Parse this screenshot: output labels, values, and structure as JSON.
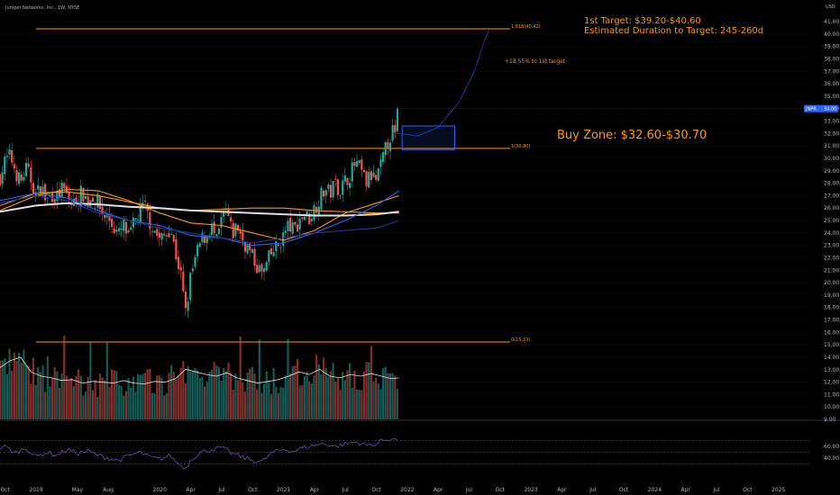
{
  "header": {
    "title": "Juniper Networks, Inc., 1W, NYSE",
    "currency": "USD"
  },
  "annotations": {
    "target_line1": "1st Target: $39.20-$40.60",
    "target_line2": "Estimated Duration to Target: 245-260d",
    "pct_to_target": "+18.55% to 1st target",
    "buy_zone": "Buy Zone: $32.60-$30.70"
  },
  "levels": [
    {
      "label": "1.618(40.42)",
      "price": 40.42
    },
    {
      "label": "1(30.80)",
      "price": 30.8
    },
    {
      "label": "0(15.23)",
      "price": 15.23
    }
  ],
  "price_tag": {
    "symbol": "JNPR",
    "value": "34.00",
    "price": 34.0
  },
  "colors": {
    "background": "#000000",
    "up": "#26a69a",
    "down": "#ef5350",
    "fib": "#ff9800",
    "ma_white": "#e0e0e0",
    "ma_blue": "#2962ff",
    "ma_navy": "#283593",
    "rsi": "#7e57c2",
    "buy_box": "#2962ff"
  },
  "chart_data": {
    "type": "candlestick",
    "title": "Juniper Networks, Inc., 1W, NYSE",
    "y_axis": {
      "range": [
        8.5,
        42.0
      ],
      "ticks": [
        9,
        10,
        11,
        12,
        13,
        14,
        15,
        16,
        17,
        18,
        19,
        20,
        21,
        22,
        23,
        24,
        25,
        26,
        27,
        28,
        29,
        30,
        31,
        32,
        33,
        34,
        35,
        36,
        37,
        38,
        39,
        40,
        41
      ],
      "tick_labels": [
        "9.00",
        "10.00",
        "11.00",
        "12.00",
        "13.00",
        "14.00",
        "15.00",
        "16.00",
        "17.00",
        "18.00",
        "19.00",
        "20.00",
        "21.00",
        "22.00",
        "23.00",
        "24.00",
        "25.00",
        "26.00",
        "27.00",
        "28.00",
        "29.00",
        "30.00",
        "31.00",
        "32.00",
        "33.00",
        "34.00",
        "35.00",
        "36.00",
        "37.00",
        "38.00",
        "39.00",
        "40.00",
        "41.00"
      ]
    },
    "x_axis": {
      "range_months": [
        -3.5,
        75.0
      ],
      "ticks": [
        {
          "label": "Oct",
          "m": -3
        },
        {
          "label": "2019",
          "m": 0
        },
        {
          "label": "May",
          "m": 4
        },
        {
          "label": "Aug",
          "m": 7
        },
        {
          "label": "2020",
          "m": 12
        },
        {
          "label": "Apr",
          "m": 15
        },
        {
          "label": "Jul",
          "m": 18
        },
        {
          "label": "Oct",
          "m": 21
        },
        {
          "label": "2021",
          "m": 24
        },
        {
          "label": "Apr",
          "m": 27
        },
        {
          "label": "Jul",
          "m": 30
        },
        {
          "label": "Oct",
          "m": 33
        },
        {
          "label": "2022",
          "m": 36
        },
        {
          "label": "Apr",
          "m": 39
        },
        {
          "label": "Jul",
          "m": 42
        },
        {
          "label": "Oct",
          "m": 45
        },
        {
          "label": "2023",
          "m": 48
        },
        {
          "label": "Apr",
          "m": 51
        },
        {
          "label": "Jul",
          "m": 54
        },
        {
          "label": "Oct",
          "m": 57
        },
        {
          "label": "2024",
          "m": 60
        },
        {
          "label": "Apr",
          "m": 63
        },
        {
          "label": "Jul",
          "m": 66
        },
        {
          "label": "Oct",
          "m": 69
        },
        {
          "label": "2025",
          "m": 72
        }
      ]
    },
    "close_path": [
      [
        -3.5,
        28.5
      ],
      [
        -3.0,
        29.8
      ],
      [
        -2.5,
        30.2
      ],
      [
        -2.0,
        29.0
      ],
      [
        -1.5,
        28.0
      ],
      [
        -1.0,
        29.2
      ],
      [
        -0.5,
        28.3
      ],
      [
        0.0,
        27.0
      ],
      [
        0.5,
        27.8
      ],
      [
        1.0,
        26.5
      ],
      [
        1.5,
        27.2
      ],
      [
        2.0,
        26.8
      ],
      [
        2.5,
        27.5
      ],
      [
        3.0,
        27.0
      ],
      [
        3.5,
        26.2
      ],
      [
        4.0,
        26.8
      ],
      [
        4.5,
        27.3
      ],
      [
        5.0,
        26.5
      ],
      [
        5.5,
        27.0
      ],
      [
        6.0,
        26.4
      ],
      [
        6.5,
        25.5
      ],
      [
        7.0,
        25.2
      ],
      [
        7.5,
        24.5
      ],
      [
        8.0,
        23.8
      ],
      [
        8.5,
        24.6
      ],
      [
        9.0,
        23.5
      ],
      [
        9.5,
        24.8
      ],
      [
        10.0,
        25.6
      ],
      [
        10.5,
        26.2
      ],
      [
        11.0,
        25.0
      ],
      [
        11.5,
        24.2
      ],
      [
        12.0,
        23.4
      ],
      [
        12.5,
        23.8
      ],
      [
        13.0,
        24.5
      ],
      [
        13.5,
        22.5
      ],
      [
        14.0,
        20.8
      ],
      [
        14.5,
        17.5
      ],
      [
        15.0,
        20.5
      ],
      [
        15.5,
        22.0
      ],
      [
        16.0,
        23.4
      ],
      [
        16.5,
        23.8
      ],
      [
        17.0,
        24.5
      ],
      [
        17.5,
        23.2
      ],
      [
        18.0,
        25.0
      ],
      [
        18.5,
        25.8
      ],
      [
        19.0,
        23.8
      ],
      [
        19.5,
        24.6
      ],
      [
        20.0,
        23.5
      ],
      [
        20.5,
        22.8
      ],
      [
        21.0,
        22.0
      ],
      [
        21.5,
        21.2
      ],
      [
        22.0,
        20.6
      ],
      [
        22.5,
        21.8
      ],
      [
        23.0,
        22.5
      ],
      [
        23.5,
        23.0
      ],
      [
        24.0,
        23.8
      ],
      [
        24.5,
        24.6
      ],
      [
        25.0,
        24.2
      ],
      [
        25.5,
        25.0
      ],
      [
        26.0,
        25.5
      ],
      [
        26.5,
        25.2
      ],
      [
        27.0,
        26.0
      ],
      [
        27.5,
        26.8
      ],
      [
        28.0,
        27.5
      ],
      [
        28.5,
        27.2
      ],
      [
        29.0,
        28.0
      ],
      [
        29.5,
        27.5
      ],
      [
        30.0,
        28.2
      ],
      [
        30.5,
        28.8
      ],
      [
        31.0,
        29.6
      ],
      [
        31.5,
        29.0
      ],
      [
        32.0,
        28.0
      ],
      [
        32.5,
        28.6
      ],
      [
        33.0,
        28.2
      ],
      [
        33.5,
        29.5
      ],
      [
        34.0,
        31.0
      ],
      [
        34.5,
        32.2
      ],
      [
        35.0,
        31.5
      ],
      [
        35.2,
        34.0
      ]
    ],
    "volume_path": [
      [
        -3.5,
        0.6
      ],
      [
        -2.5,
        0.68
      ],
      [
        -1.5,
        0.72
      ],
      [
        -0.5,
        0.55
      ],
      [
        0.5,
        0.5
      ],
      [
        1.5,
        0.48
      ],
      [
        2.5,
        0.45
      ],
      [
        3.5,
        0.46
      ],
      [
        4.5,
        0.42
      ],
      [
        5.5,
        0.44
      ],
      [
        6.5,
        0.43
      ],
      [
        7.5,
        0.42
      ],
      [
        8.5,
        0.45
      ],
      [
        9.5,
        0.42
      ],
      [
        10.5,
        0.41
      ],
      [
        11.5,
        0.44
      ],
      [
        12.5,
        0.43
      ],
      [
        13.5,
        0.47
      ],
      [
        14.5,
        0.58
      ],
      [
        15.5,
        0.55
      ],
      [
        16.5,
        0.52
      ],
      [
        17.5,
        0.5
      ],
      [
        18.5,
        0.54
      ],
      [
        19.5,
        0.48
      ],
      [
        20.5,
        0.45
      ],
      [
        21.5,
        0.42
      ],
      [
        22.5,
        0.44
      ],
      [
        23.5,
        0.46
      ],
      [
        24.5,
        0.5
      ],
      [
        25.5,
        0.55
      ],
      [
        26.5,
        0.52
      ],
      [
        27.5,
        0.58
      ],
      [
        28.5,
        0.5
      ],
      [
        29.5,
        0.48
      ],
      [
        30.5,
        0.52
      ],
      [
        31.5,
        0.5
      ],
      [
        32.5,
        0.53
      ],
      [
        33.5,
        0.5
      ],
      [
        34.5,
        0.47
      ],
      [
        35.2,
        0.48
      ]
    ],
    "rsi_path": [
      [
        -3.5,
        58
      ],
      [
        -3.0,
        60
      ],
      [
        -2.0,
        48
      ],
      [
        -1.0,
        58
      ],
      [
        0.0,
        42
      ],
      [
        1.0,
        50
      ],
      [
        2.0,
        45
      ],
      [
        3.0,
        55
      ],
      [
        4.0,
        48
      ],
      [
        5.0,
        52
      ],
      [
        6.0,
        45
      ],
      [
        7.0,
        40
      ],
      [
        8.0,
        36
      ],
      [
        9.0,
        44
      ],
      [
        10.0,
        50
      ],
      [
        11.0,
        42
      ],
      [
        12.0,
        38
      ],
      [
        13.0,
        45
      ],
      [
        13.5,
        35
      ],
      [
        14.0,
        28
      ],
      [
        14.5,
        22
      ],
      [
        15.0,
        38
      ],
      [
        16.0,
        50
      ],
      [
        17.0,
        55
      ],
      [
        18.0,
        58
      ],
      [
        19.0,
        48
      ],
      [
        20.0,
        42
      ],
      [
        21.0,
        36
      ],
      [
        22.0,
        34
      ],
      [
        22.5,
        44
      ],
      [
        23.0,
        50
      ],
      [
        24.0,
        55
      ],
      [
        25.0,
        52
      ],
      [
        26.0,
        58
      ],
      [
        27.0,
        62
      ],
      [
        28.0,
        65
      ],
      [
        29.0,
        60
      ],
      [
        30.0,
        64
      ],
      [
        31.0,
        68
      ],
      [
        32.0,
        62
      ],
      [
        33.0,
        64
      ],
      [
        33.5,
        70
      ],
      [
        34.0,
        72
      ],
      [
        34.5,
        74
      ],
      [
        35.0,
        70
      ],
      [
        35.2,
        76
      ]
    ],
    "moving_averages": [
      {
        "color": "#ff9800",
        "points": [
          [
            -3.5,
            26.2
          ],
          [
            0,
            27.2
          ],
          [
            3,
            27.3
          ],
          [
            6,
            27.0
          ],
          [
            9,
            26.5
          ],
          [
            12,
            26.0
          ],
          [
            15,
            25.8
          ],
          [
            18,
            25.9
          ],
          [
            21,
            26.0
          ],
          [
            24,
            26.0
          ],
          [
            27,
            25.8
          ],
          [
            30,
            25.7
          ],
          [
            33,
            25.6
          ],
          [
            35.2,
            25.6
          ]
        ]
      },
      {
        "color": "#ff9800",
        "points": [
          [
            -3.5,
            25.8
          ],
          [
            0,
            27.0
          ],
          [
            3,
            27.5
          ],
          [
            6,
            27.4
          ],
          [
            9,
            26.6
          ],
          [
            12,
            25.6
          ],
          [
            15,
            24.8
          ],
          [
            18,
            24.6
          ],
          [
            21,
            24.0
          ],
          [
            24,
            23.4
          ],
          [
            27,
            24.2
          ],
          [
            30,
            25.6
          ],
          [
            33,
            26.4
          ],
          [
            35.2,
            27.0
          ]
        ]
      },
      {
        "color": "#e0e0e0",
        "points": [
          [
            -3.5,
            25.7
          ],
          [
            0,
            26.2
          ],
          [
            3,
            26.4
          ],
          [
            6,
            26.3
          ],
          [
            9,
            26.1
          ],
          [
            12,
            26.0
          ],
          [
            15,
            25.8
          ],
          [
            18,
            25.7
          ],
          [
            21,
            25.6
          ],
          [
            24,
            25.5
          ],
          [
            27,
            25.4
          ],
          [
            30,
            25.4
          ],
          [
            33,
            25.5
          ],
          [
            35.2,
            25.7
          ]
        ]
      },
      {
        "color": "#2962ff",
        "points": [
          [
            -3.5,
            26.6
          ],
          [
            0,
            27.2
          ],
          [
            3,
            26.8
          ],
          [
            6,
            25.8
          ],
          [
            9,
            25.0
          ],
          [
            12,
            24.6
          ],
          [
            15,
            23.8
          ],
          [
            18,
            23.6
          ],
          [
            21,
            23.0
          ],
          [
            24,
            23.2
          ],
          [
            27,
            24.0
          ],
          [
            30,
            25.0
          ],
          [
            33,
            26.2
          ],
          [
            35.2,
            27.4
          ]
        ]
      },
      {
        "color": "#283593",
        "points": [
          [
            -3.5,
            26.4
          ],
          [
            0,
            27.0
          ],
          [
            3,
            26.6
          ],
          [
            6,
            25.6
          ],
          [
            9,
            25.0
          ],
          [
            12,
            24.4
          ],
          [
            15,
            24.0
          ],
          [
            18,
            23.6
          ],
          [
            21,
            23.2
          ],
          [
            24,
            23.6
          ],
          [
            27,
            24.0
          ],
          [
            30,
            24.2
          ],
          [
            33,
            24.4
          ],
          [
            35.2,
            25.0
          ]
        ]
      }
    ],
    "projection": [
      [
        35.2,
        32.0
      ],
      [
        37.0,
        31.8
      ],
      [
        39.0,
        32.5
      ],
      [
        41.0,
        34.5
      ],
      [
        42.5,
        37.0
      ],
      [
        43.5,
        39.5
      ],
      [
        44.0,
        40.42
      ]
    ],
    "buy_zone": {
      "x_from_m": 35.5,
      "x_to_m": 40.6,
      "low": 30.7,
      "high": 32.6
    },
    "rsi_axis": {
      "range": [
        0,
        100
      ],
      "ticks": [
        60,
        40
      ],
      "tick_labels": [
        "60.00",
        "40.00"
      ],
      "dashed_levels": [
        70,
        50,
        30
      ]
    }
  }
}
